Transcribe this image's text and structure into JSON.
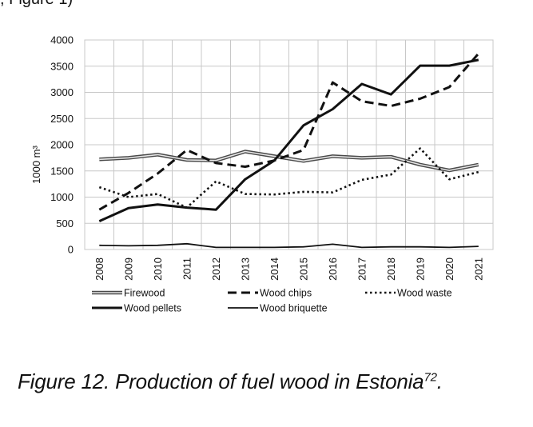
{
  "top_snippet": ", Figure 1)",
  "caption": {
    "text": "Figure 12. Production of fuel wood in Estonia",
    "superscript": "72",
    "suffix": "."
  },
  "chart_data": {
    "type": "line",
    "ylabel": "1000 m³",
    "xlabel": "",
    "title": "",
    "ylim": [
      0,
      4000
    ],
    "yticks": [
      0,
      500,
      1000,
      1500,
      2000,
      2500,
      3000,
      3500,
      4000
    ],
    "grid": true,
    "legend_position": "bottom",
    "x": [
      "2008",
      "2009",
      "2010",
      "2011",
      "2012",
      "2013",
      "2014",
      "2015",
      "2016",
      "2017",
      "2018",
      "2019",
      "2020",
      "2021"
    ],
    "series": [
      {
        "name": "Firewood",
        "style": "double",
        "color": "#555555",
        "values": [
          1720,
          1750,
          1810,
          1710,
          1700,
          1870,
          1780,
          1690,
          1780,
          1750,
          1770,
          1620,
          1510,
          1620
        ]
      },
      {
        "name": "Wood chips",
        "style": "dashed",
        "color": "#111111",
        "values": [
          760,
          1080,
          1450,
          1900,
          1650,
          1580,
          1700,
          1900,
          3190,
          2830,
          2740,
          2880,
          3100,
          3740
        ]
      },
      {
        "name": "Wood waste",
        "style": "dotted",
        "color": "#111111",
        "values": [
          1190,
          1000,
          1060,
          800,
          1300,
          1060,
          1050,
          1100,
          1090,
          1330,
          1430,
          1930,
          1340,
          1480
        ]
      },
      {
        "name": "Wood pellets",
        "style": "solid-thick",
        "color": "#111111",
        "values": [
          540,
          790,
          860,
          800,
          760,
          1340,
          1700,
          2370,
          2680,
          3160,
          2960,
          3510,
          3510,
          3620
        ]
      },
      {
        "name": "Wood briquette",
        "style": "solid-thin",
        "color": "#111111",
        "values": [
          80,
          70,
          80,
          110,
          40,
          40,
          40,
          50,
          100,
          40,
          50,
          50,
          40,
          60
        ]
      }
    ]
  }
}
